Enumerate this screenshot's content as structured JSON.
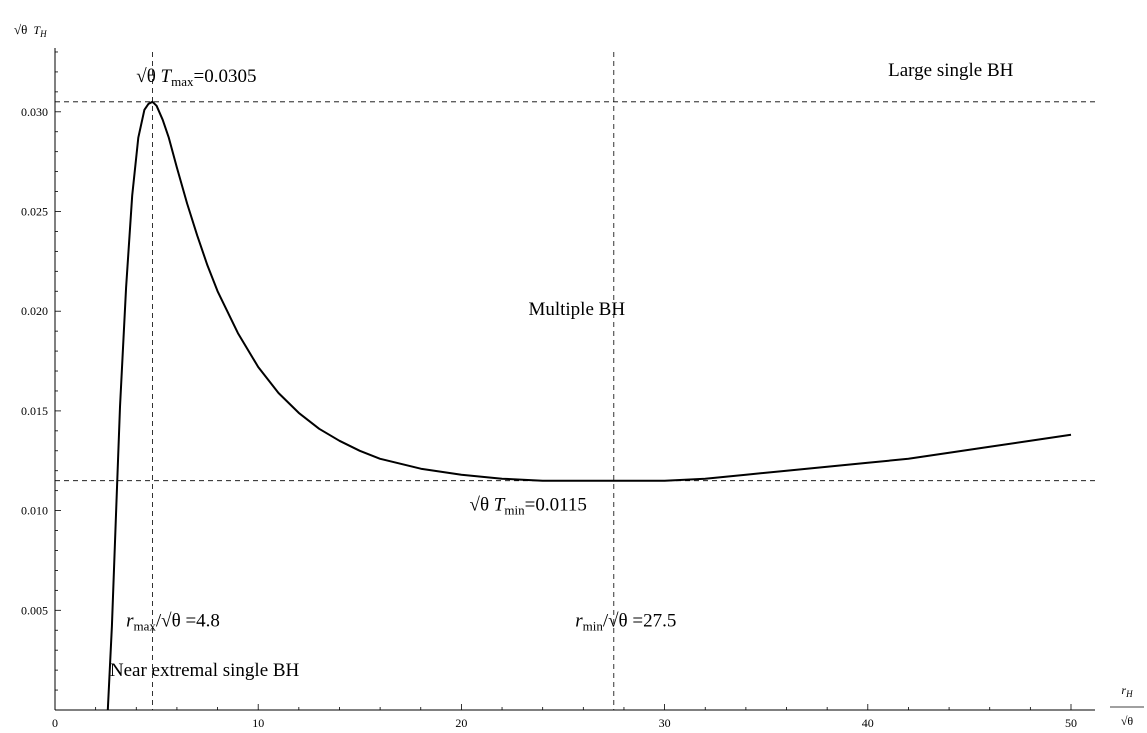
{
  "chart_data": {
    "type": "line",
    "title": "",
    "xlabel": "r_H/√θ",
    "ylabel": "√θ T_H",
    "axis_labels": {
      "y_sqrt": "√θ",
      "y_var": "T",
      "y_sub": "H",
      "x_var": "r",
      "x_sub": "H",
      "x_den": "√θ"
    },
    "xlim": [
      0,
      50
    ],
    "ylim": [
      0,
      0.033
    ],
    "x_ticks": [
      0,
      10,
      20,
      30,
      40,
      50
    ],
    "x_tick_labels": [
      "0",
      "10",
      "20",
      "30",
      "40",
      "50"
    ],
    "y_ticks": [
      0.005,
      0.01,
      0.015,
      0.02,
      0.025,
      0.03
    ],
    "y_tick_labels": [
      "0.005",
      "0.010",
      "0.015",
      "0.020",
      "0.025",
      "0.030"
    ],
    "grid": false,
    "series": [
      {
        "x": [
          2.6,
          2.8,
          3.0,
          3.2,
          3.5,
          3.8,
          4.1,
          4.4,
          4.6,
          4.8,
          5.0,
          5.3,
          5.6,
          6.0,
          6.5,
          7.0,
          7.5,
          8.0,
          9.0,
          10.0,
          11.0,
          12.0,
          13.0,
          14.0,
          15.0,
          16.0,
          18.0,
          20.0,
          22.0,
          24.0,
          26.0,
          27.5,
          30.0,
          32.0,
          34.0,
          36.0,
          38.0,
          40.0,
          42.0,
          44.0,
          46.0,
          48.0,
          50.0
        ],
        "y": [
          0.0,
          0.0042,
          0.0098,
          0.0152,
          0.0212,
          0.0258,
          0.0287,
          0.0301,
          0.0304,
          0.0305,
          0.0303,
          0.0296,
          0.0287,
          0.0272,
          0.0254,
          0.0238,
          0.0223,
          0.021,
          0.0189,
          0.0172,
          0.0159,
          0.0149,
          0.0141,
          0.0135,
          0.013,
          0.0126,
          0.0121,
          0.0118,
          0.0116,
          0.0115,
          0.0115,
          0.0115,
          0.0115,
          0.0116,
          0.0118,
          0.012,
          0.0122,
          0.0124,
          0.0126,
          0.0129,
          0.0132,
          0.0135,
          0.0138
        ]
      }
    ],
    "reference_lines": {
      "x": [
        4.8,
        27.5
      ],
      "y": [
        0.0305,
        0.0115
      ]
    },
    "annotations": {
      "tmax": {
        "sqrt": "√θ",
        "var": "T",
        "sub": "max",
        "value": "=0.0305",
        "x": 4.0,
        "y": 0.0315
      },
      "tmin": {
        "sqrt": "√θ",
        "var": "T",
        "sub": "min",
        "value": "=0.0115",
        "x": 20.4,
        "y": 0.01
      },
      "rmax": {
        "var": "r",
        "sub": "max",
        "sqrt": "/√θ",
        "value": "=4.8",
        "x": 3.5,
        "y": 0.0042
      },
      "rmin": {
        "var": "r",
        "sub": "min",
        "sqrt": "/√θ",
        "value": "=27.5",
        "x": 25.6,
        "y": 0.0042
      },
      "multiple": {
        "text": "Multiple BH",
        "x": 23.3,
        "y": 0.0198
      },
      "large": {
        "text": "Large single BH",
        "x": 41.0,
        "y": 0.0318
      },
      "near": {
        "text": "Near extremal single BH",
        "x": 2.7,
        "y": 0.0017
      }
    }
  }
}
